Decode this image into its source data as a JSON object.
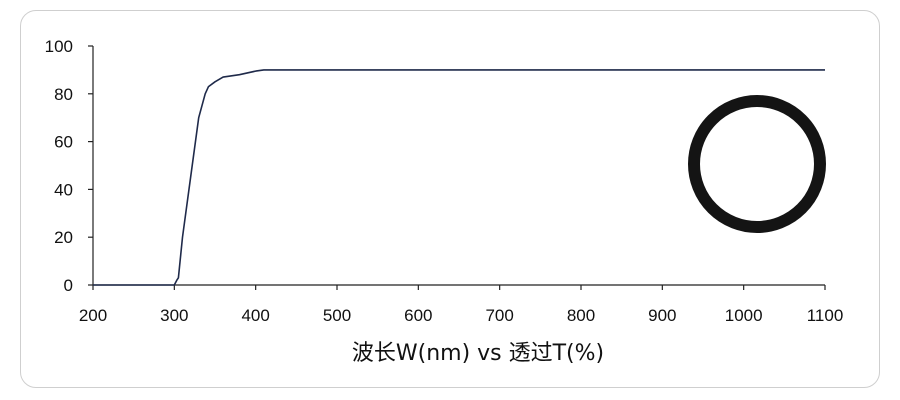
{
  "chart_data": {
    "type": "line",
    "title": "",
    "xlabel": "波长W(nm) vs 透过T(%)",
    "ylabel": "",
    "xlim": [
      200,
      1100
    ],
    "ylim": [
      0,
      100
    ],
    "x_ticks": [
      200,
      300,
      400,
      500,
      600,
      700,
      800,
      900,
      1000,
      1100
    ],
    "y_ticks": [
      0,
      20,
      40,
      60,
      80,
      100
    ],
    "grid": false,
    "legend": "none",
    "series": [
      {
        "color": "#1f2a4a",
        "x": [
          200,
          300,
          303,
          305,
          310,
          320,
          330,
          338,
          342,
          350,
          360,
          380,
          400,
          410,
          500,
          600,
          700,
          800,
          900,
          1000,
          1100
        ],
        "y": [
          0,
          0,
          2,
          3,
          20,
          45,
          70,
          80,
          83,
          85,
          87,
          88,
          89.5,
          90,
          90,
          90,
          90,
          90,
          90,
          90,
          90
        ]
      }
    ],
    "inset_image": "ring-icon"
  }
}
